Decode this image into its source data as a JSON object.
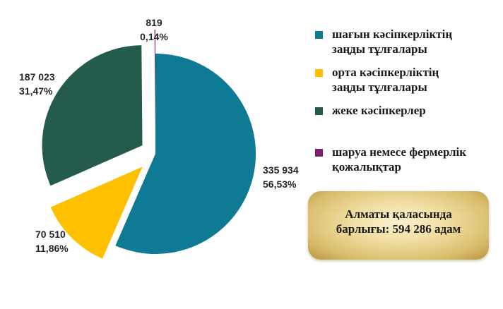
{
  "chart_data": {
    "type": "pie",
    "title": "",
    "slices": [
      {
        "label": "шағын кәсіпкерліктің заңды тұлғалары",
        "value": 335934,
        "value_text": "335 934",
        "percent_text": "56,53%",
        "color": "#0f7a93"
      },
      {
        "label": "орта кәсіпкерліктің заңды тұлғалары",
        "value": 70510,
        "value_text": "70 510",
        "percent_text": "11,86%",
        "color": "#ffc000"
      },
      {
        "label": "жеке кәсіпкерлер",
        "value": 187023,
        "value_text": "187 023",
        "percent_text": "31,47%",
        "color": "#245b4c"
      },
      {
        "label": "шаруа немесе фермерлік қожалықтар",
        "value": 819,
        "value_text": "819",
        "percent_text": "0,14%",
        "color": "#7a1f72"
      }
    ],
    "legend_position": "right"
  },
  "total_box": {
    "line1": "Алматы қаласында",
    "line2": "барлығы: 594 286 адам"
  }
}
